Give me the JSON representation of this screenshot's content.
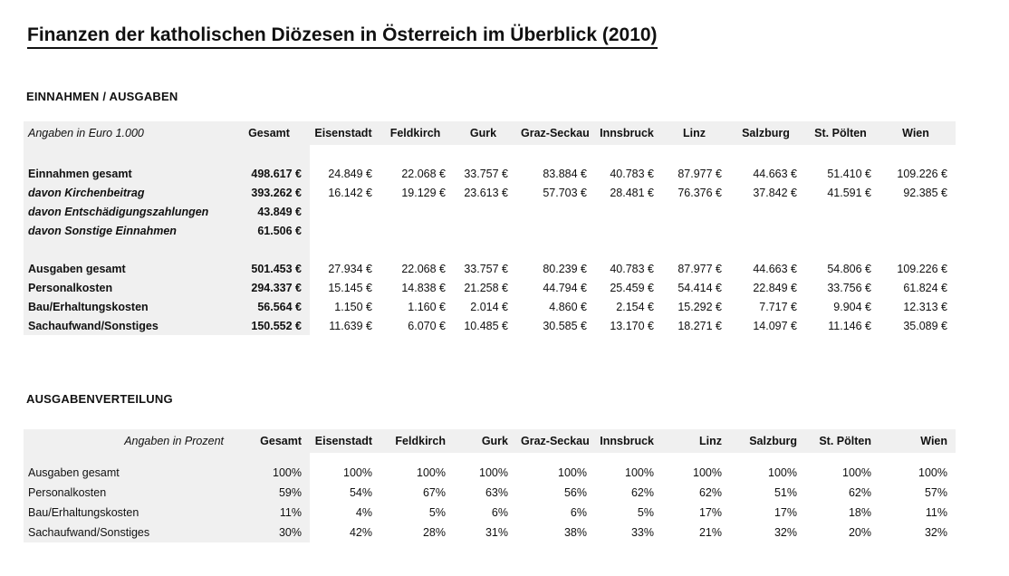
{
  "page": {
    "title": "Finanzen der katholischen Diözesen in Österreich im Überblick (2010)"
  },
  "colors": {
    "shade": "#f0f0f0",
    "text": "#111111",
    "background": "#ffffff"
  },
  "tables": [
    {
      "section_heading": "EINNAHMEN / AUSGABEN",
      "unit_label": "Angaben in Euro 1.000",
      "columns": [
        "Gesamt",
        "Eisenstadt",
        "Feldkirch",
        "Gurk",
        "Graz-Seckau",
        "Innsbruck",
        "Linz",
        "Salzburg",
        "St. Pölten",
        "Wien"
      ],
      "groups": [
        {
          "rows": [
            {
              "label": "Einnahmen gesamt",
              "emphasized": false,
              "values": [
                "498.617 €",
                "24.849 €",
                "22.068 €",
                "33.757 €",
                "83.884 €",
                "40.783 €",
                "87.977 €",
                "44.663 €",
                "51.410 €",
                "109.226 €"
              ]
            },
            {
              "label": "davon Kirchenbeitrag",
              "emphasized": true,
              "values": [
                "393.262 €",
                "16.142 €",
                "19.129 €",
                "23.613 €",
                "57.703 €",
                "28.481 €",
                "76.376 €",
                "37.842 €",
                "41.591 €",
                "92.385 €"
              ]
            },
            {
              "label": "davon Entschädigungszahlungen",
              "emphasized": true,
              "values": [
                "43.849 €",
                "",
                "",
                "",
                "",
                "",
                "",
                "",
                "",
                ""
              ]
            },
            {
              "label": "davon Sonstige Einnahmen",
              "emphasized": true,
              "values": [
                "61.506 €",
                "",
                "",
                "",
                "",
                "",
                "",
                "",
                "",
                ""
              ]
            }
          ]
        },
        {
          "rows": [
            {
              "label": "Ausgaben gesamt",
              "emphasized": false,
              "values": [
                "501.453 €",
                "27.934 €",
                "22.068 €",
                "33.757 €",
                "80.239 €",
                "40.783 €",
                "87.977 €",
                "44.663 €",
                "54.806 €",
                "109.226 €"
              ]
            },
            {
              "label": "Personalkosten",
              "emphasized": false,
              "values": [
                "294.337 €",
                "15.145 €",
                "14.838 €",
                "21.258 €",
                "44.794 €",
                "25.459 €",
                "54.414 €",
                "22.849 €",
                "33.756 €",
                "61.824 €"
              ]
            },
            {
              "label": "Bau/Erhaltungskosten",
              "emphasized": false,
              "values": [
                "56.564 €",
                "1.150 €",
                "1.160 €",
                "2.014 €",
                "4.860 €",
                "2.154 €",
                "15.292 €",
                "7.717 €",
                "9.904 €",
                "12.313 €"
              ]
            },
            {
              "label": "Sachaufwand/Sonstiges",
              "emphasized": false,
              "values": [
                "150.552 €",
                "11.639 €",
                "6.070 €",
                "10.485 €",
                "30.585 €",
                "13.170 €",
                "18.271 €",
                "14.097 €",
                "11.146 €",
                "35.089 €"
              ]
            }
          ]
        }
      ]
    },
    {
      "section_heading": "AUSGABENVERTEILUNG",
      "unit_label": "Angaben in Prozent",
      "columns": [
        "Gesamt",
        "Eisenstadt",
        "Feldkirch",
        "Gurk",
        "Graz-Seckau",
        "Innsbruck",
        "Linz",
        "Salzburg",
        "St. Pölten",
        "Wien"
      ],
      "groups": [
        {
          "rows": [
            {
              "label": "Ausgaben gesamt",
              "emphasized": false,
              "values": [
                "100%",
                "100%",
                "100%",
                "100%",
                "100%",
                "100%",
                "100%",
                "100%",
                "100%",
                "100%"
              ]
            },
            {
              "label": "Personalkosten",
              "emphasized": false,
              "values": [
                "59%",
                "54%",
                "67%",
                "63%",
                "56%",
                "62%",
                "62%",
                "51%",
                "62%",
                "57%"
              ]
            },
            {
              "label": "Bau/Erhaltungskosten",
              "emphasized": false,
              "values": [
                "11%",
                "4%",
                "5%",
                "6%",
                "6%",
                "5%",
                "17%",
                "17%",
                "18%",
                "11%"
              ]
            },
            {
              "label": "Sachaufwand/Sonstiges",
              "emphasized": false,
              "values": [
                "30%",
                "42%",
                "28%",
                "31%",
                "38%",
                "33%",
                "21%",
                "32%",
                "20%",
                "32%"
              ]
            }
          ]
        }
      ]
    }
  ]
}
